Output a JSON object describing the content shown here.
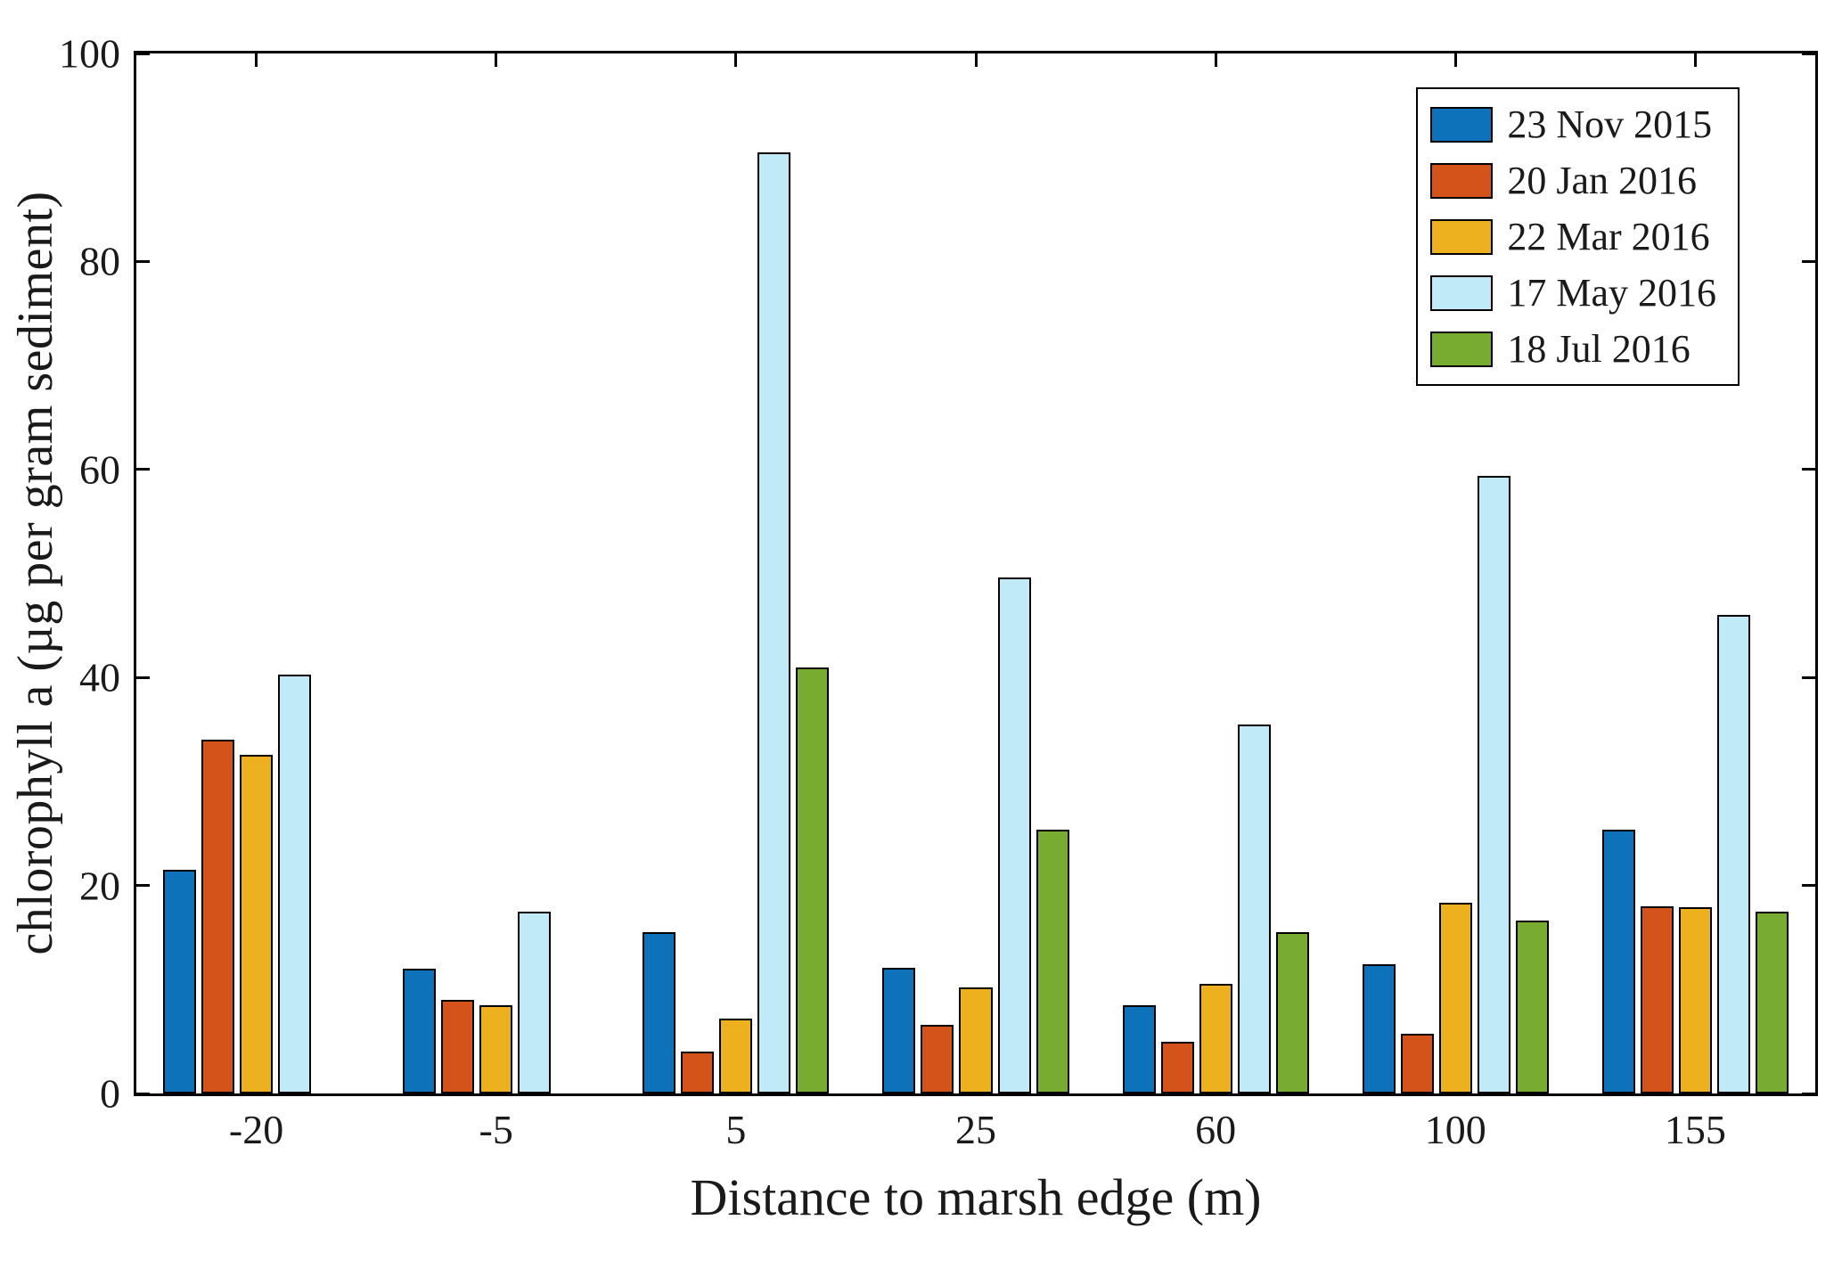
{
  "figure": {
    "background": "#ffffff",
    "axis_color": "#000000"
  },
  "chart_data": {
    "type": "bar",
    "title": "",
    "xlabel": "Distance to marsh edge (m)",
    "ylabel": "chlorophyll a (µg per gram sediment)",
    "categories": [
      "-20",
      "-5",
      "5",
      "25",
      "60",
      "100",
      "155"
    ],
    "ylim": [
      0,
      100
    ],
    "yticks": [
      0,
      20,
      40,
      60,
      80,
      100
    ],
    "grid": false,
    "legend_position": "top-right",
    "bar_edge_color": "#000000",
    "series": [
      {
        "name": "23 Nov 2015",
        "color": "#0d72b9",
        "values": [
          21.5,
          12.0,
          15.5,
          12.1,
          8.5,
          12.4,
          25.4
        ]
      },
      {
        "name": "20 Jan 2016",
        "color": "#d4531a",
        "values": [
          34.0,
          9.0,
          4.0,
          6.6,
          5.0,
          5.7,
          18.0
        ]
      },
      {
        "name": "22 Mar 2016",
        "color": "#edb120",
        "values": [
          32.6,
          8.5,
          7.2,
          10.2,
          10.5,
          18.3,
          17.9
        ]
      },
      {
        "name": "17 May 2016",
        "color": "#c0eaf8",
        "values": [
          40.3,
          17.5,
          90.5,
          49.6,
          35.5,
          59.4,
          46.0
        ]
      },
      {
        "name": "18 Jul 2016",
        "color": "#77ac30",
        "values": [
          0,
          0,
          41.0,
          25.4,
          15.5,
          16.6,
          17.5
        ]
      }
    ]
  }
}
